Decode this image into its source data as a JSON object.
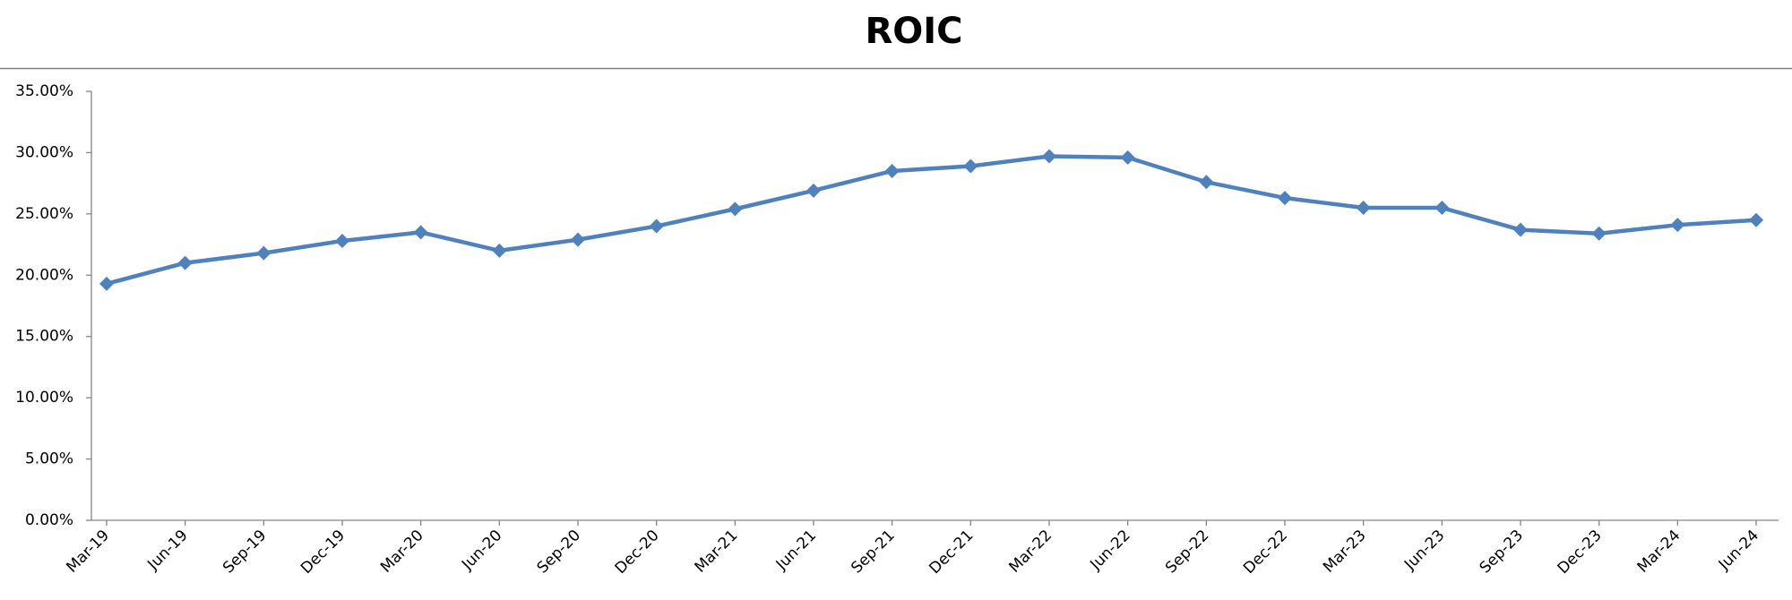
{
  "chart_data": {
    "type": "line",
    "title": "ROIC",
    "categories": [
      "Mar-19",
      "Jun-19",
      "Sep-19",
      "Dec-19",
      "Mar-20",
      "Jun-20",
      "Sep-20",
      "Dec-20",
      "Mar-21",
      "Jun-21",
      "Sep-21",
      "Dec-21",
      "Mar-22",
      "Jun-22",
      "Sep-22",
      "Dec-22",
      "Mar-23",
      "Jun-23",
      "Sep-23",
      "Dec-23",
      "Mar-24",
      "Jun-24"
    ],
    "values": [
      19.3,
      21.0,
      21.8,
      22.8,
      23.5,
      22.0,
      22.9,
      24.0,
      25.4,
      26.9,
      28.5,
      28.9,
      29.7,
      29.6,
      27.6,
      26.3,
      25.5,
      25.5,
      23.7,
      23.4,
      24.1,
      24.5
    ],
    "color": "#4f81bd",
    "ylim": [
      0,
      35
    ],
    "yticks": [
      {
        "value": 0,
        "label": "0.00%"
      },
      {
        "value": 5,
        "label": "5.00%"
      },
      {
        "value": 10,
        "label": "10.00%"
      },
      {
        "value": 15,
        "label": "15.00%"
      },
      {
        "value": 20,
        "label": "20.00%"
      },
      {
        "value": 25,
        "label": "25.00%"
      },
      {
        "value": 30,
        "label": "30.00%"
      },
      {
        "value": 35,
        "label": "35.00%"
      }
    ],
    "grid": false
  }
}
